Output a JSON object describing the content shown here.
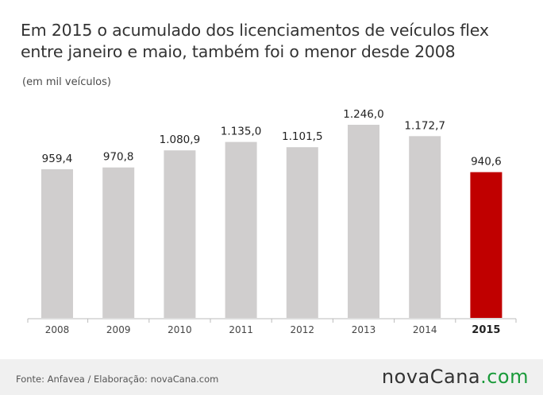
{
  "title": {
    "line1": "Em 2015 o acumulado dos licenciamentos de veículos flex",
    "line2": "entre janeiro e maio, também foi o menor desde 2008"
  },
  "subtitle": "(em mil veículos)",
  "chart_data": {
    "type": "bar",
    "categories": [
      "2008",
      "2009",
      "2010",
      "2011",
      "2012",
      "2013",
      "2014",
      "2015"
    ],
    "values": [
      959.4,
      970.8,
      1080.9,
      1135.0,
      1101.5,
      1246.0,
      1172.7,
      940.6
    ],
    "value_labels": [
      "959,4",
      "970,8",
      "1.080,9",
      "1.135,0",
      "1.101,5",
      "1.246,0",
      "1.172,7",
      "940,6"
    ],
    "highlight_index": 7,
    "ylim": [
      0,
      1246.0
    ],
    "grid": false,
    "colors": {
      "default": "#d0cece",
      "highlight": "#c00000"
    }
  },
  "footer": {
    "source": "Fonte: Anfavea / Elaboração: novaCana.com",
    "brand_part1": "novaCana",
    "brand_part2": ".com"
  }
}
